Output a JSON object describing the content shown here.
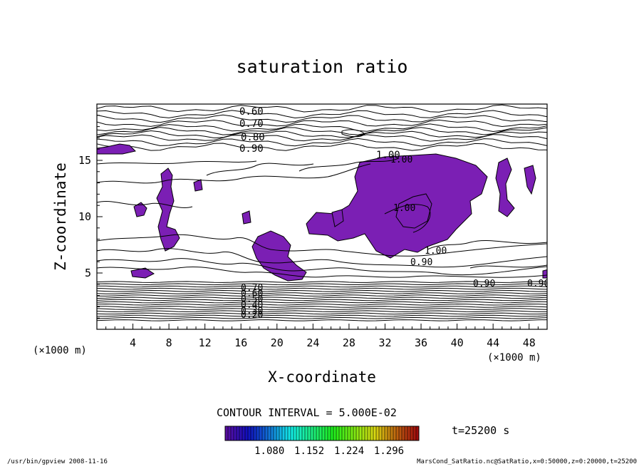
{
  "chart_data": {
    "type": "contour",
    "title": "saturation ratio",
    "xlabel": "X-coordinate",
    "ylabel": "Z-coordinate",
    "x_unit": "(×1000 m)",
    "y_unit": "(×1000 m)",
    "xlim": [
      0,
      50
    ],
    "ylim": [
      0,
      20
    ],
    "x_ticks": [
      4,
      8,
      12,
      16,
      20,
      24,
      28,
      32,
      36,
      40,
      44,
      48
    ],
    "y_ticks": [
      5,
      10,
      15
    ],
    "contour_interval_text": "CONTOUR INTERVAL = 5.000E-02",
    "time_label": "t=25200 s",
    "upper_contour_labels": [
      "0.60",
      "0.70",
      "0.80",
      "0.90",
      "1.00"
    ],
    "lower_contour_labels": [
      "0.70",
      "0.60",
      "0.50",
      "0.40",
      "0.30",
      "0.20"
    ],
    "colorbar_ticks": [
      "1.080",
      "1.152",
      "1.224",
      "1.296"
    ],
    "colorbar_range": [
      1.0,
      1.35
    ],
    "shading_color": "#7b1fb4",
    "footer_left": "/usr/bin/gpview   2008-11-16",
    "footer_right": "MarsCond_SatRatio.nc@SatRatio,x=0:50000,z=0:20000,t=25200"
  }
}
